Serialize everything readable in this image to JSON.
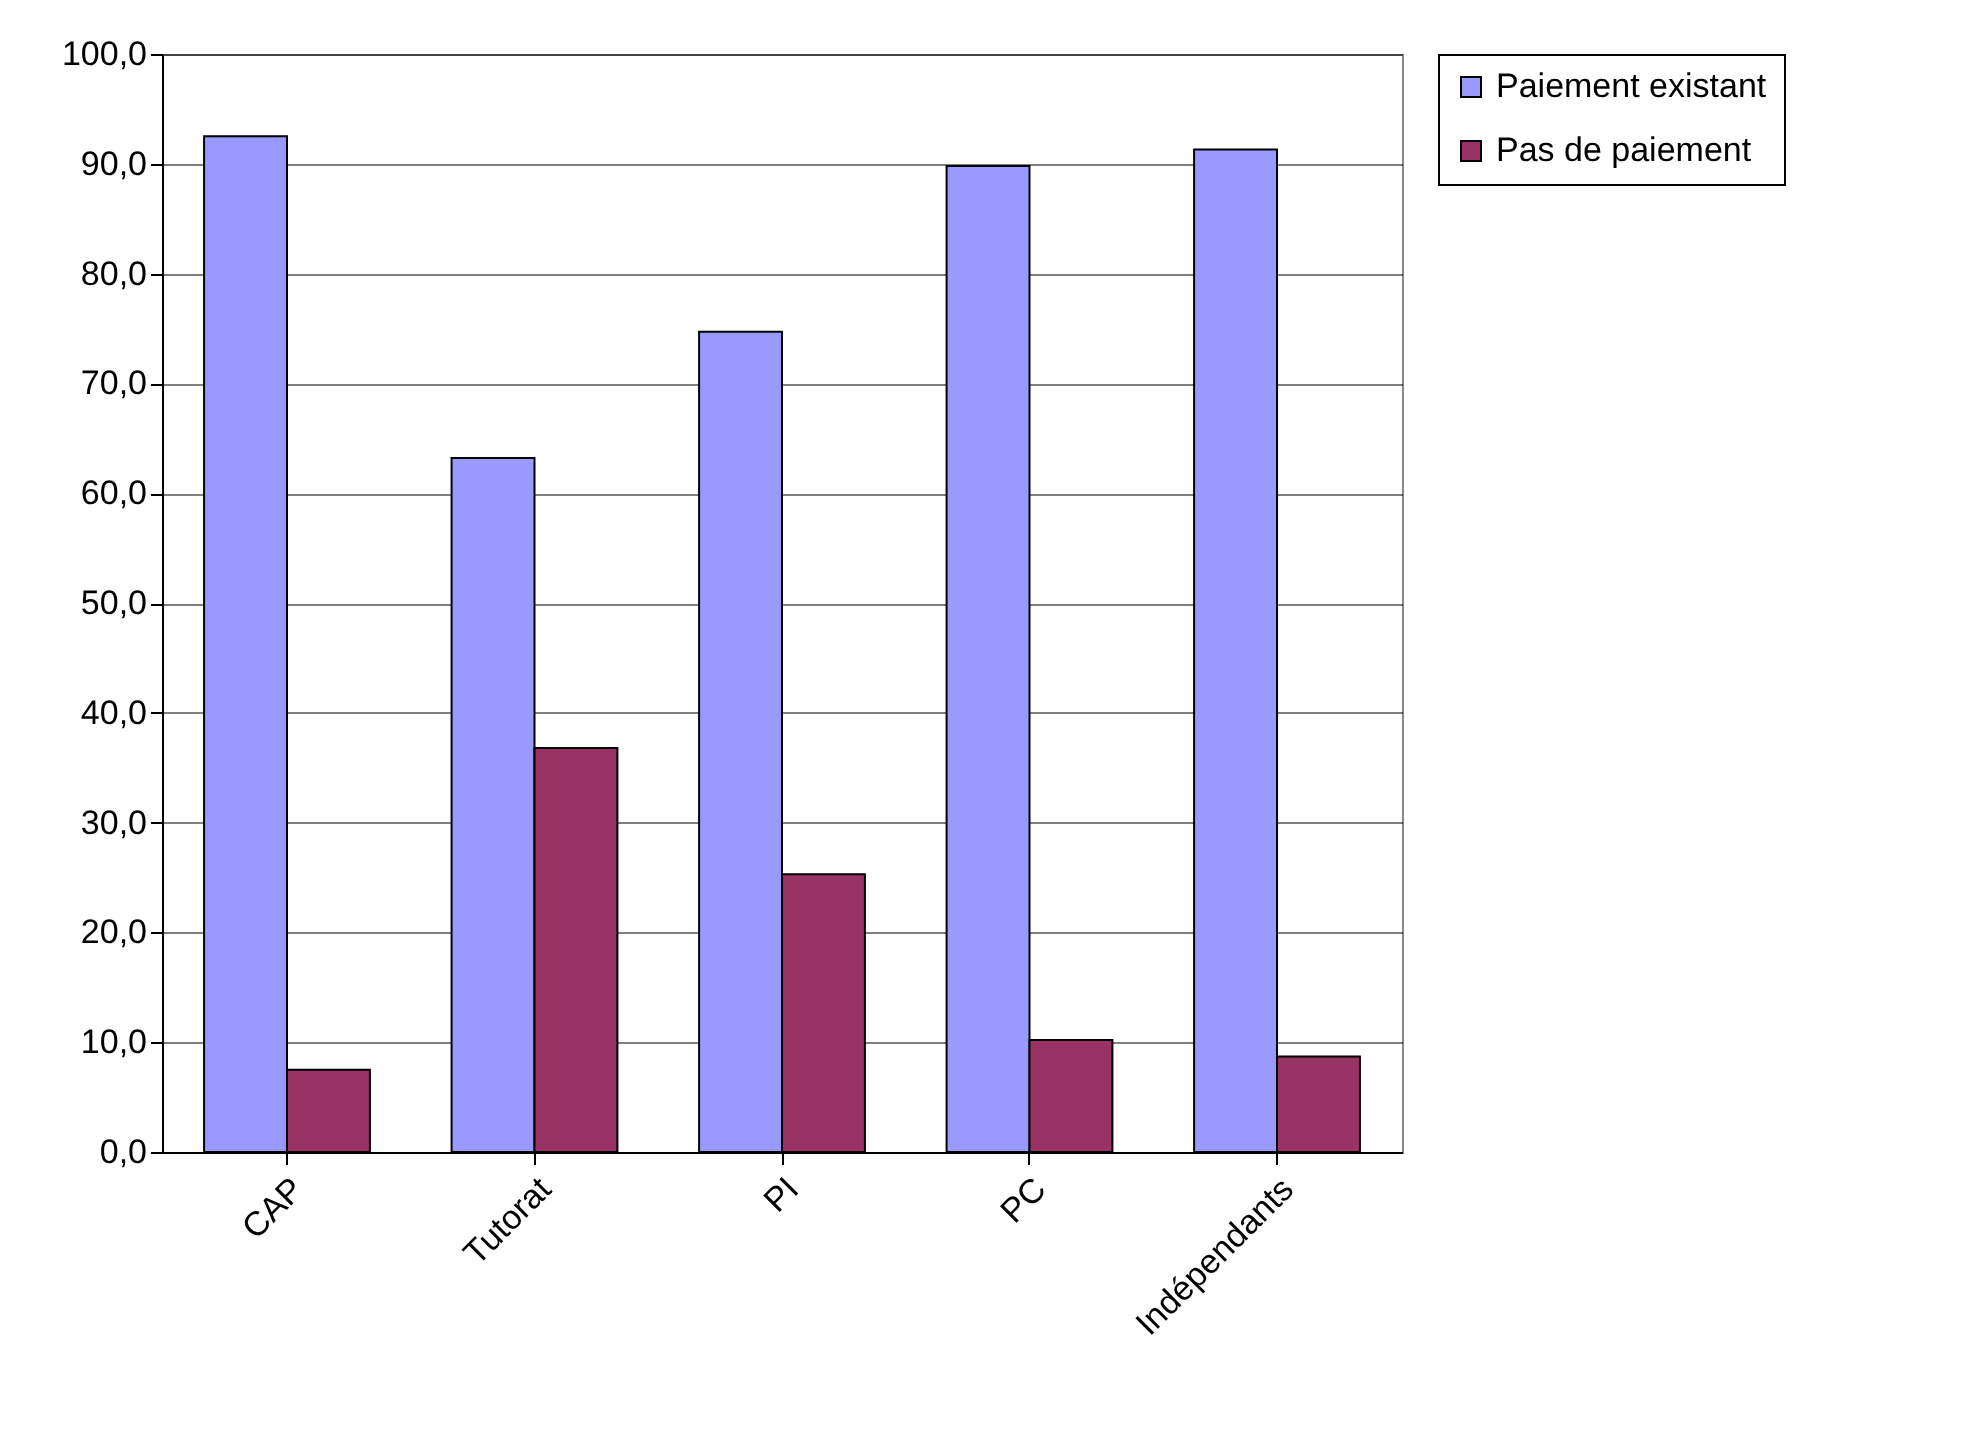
{
  "chart_data": {
    "type": "bar",
    "categories": [
      "CAP",
      "Tutorat",
      "PI",
      "PC",
      "Indépendants"
    ],
    "series": [
      {
        "name": "Paiement existant",
        "color": "#9999ff",
        "values": [
          92.5,
          63.2,
          74.7,
          89.8,
          91.3
        ]
      },
      {
        "name": "Pas de paiement",
        "color": "#993366",
        "values": [
          7.5,
          36.8,
          25.3,
          10.2,
          8.7
        ]
      }
    ],
    "ylim": [
      0,
      100
    ],
    "yticks": [
      {
        "value": 0,
        "label": "0,0"
      },
      {
        "value": 10,
        "label": "10,0"
      },
      {
        "value": 20,
        "label": "20,0"
      },
      {
        "value": 30,
        "label": "30,0"
      },
      {
        "value": 40,
        "label": "40,0"
      },
      {
        "value": 50,
        "label": "50,0"
      },
      {
        "value": 60,
        "label": "60,0"
      },
      {
        "value": 70,
        "label": "70,0"
      },
      {
        "value": 80,
        "label": "80,0"
      },
      {
        "value": 90,
        "label": "90,0"
      },
      {
        "value": 100,
        "label": "100,0"
      }
    ],
    "grid": "y",
    "legend": "right"
  }
}
